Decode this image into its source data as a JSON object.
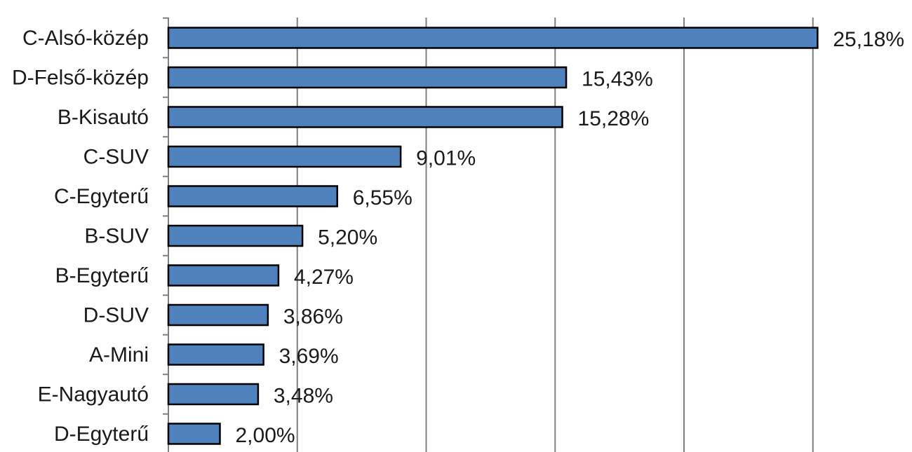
{
  "chart_data": {
    "type": "bar",
    "orientation": "horizontal",
    "categories": [
      "C-Alsó-közép",
      "D-Felső-közép",
      "B-Kisautó",
      "C-SUV",
      "C-Egyterű",
      "B-SUV",
      "B-Egyterű",
      "D-SUV",
      "A-Mini",
      "E-Nagyautó",
      "D-Egyterű"
    ],
    "values": [
      25.18,
      15.43,
      15.28,
      9.01,
      6.55,
      5.2,
      4.27,
      3.86,
      3.69,
      3.48,
      2.0
    ],
    "value_labels": [
      "25,18%",
      "15,43%",
      "15,28%",
      "9,01%",
      "6,55%",
      "5,20%",
      "4,27%",
      "3,86%",
      "3,69%",
      "3,48%",
      "2,00%"
    ],
    "xlim": [
      0,
      30
    ],
    "x_gridlines": [
      5,
      10,
      15,
      20,
      25
    ],
    "grid": true,
    "legend": "none",
    "title": "",
    "xlabel": "",
    "ylabel": "",
    "bar_color": "#4f81bd",
    "bar_border_color": "#000000",
    "grid_color": "#7f7f7f"
  }
}
